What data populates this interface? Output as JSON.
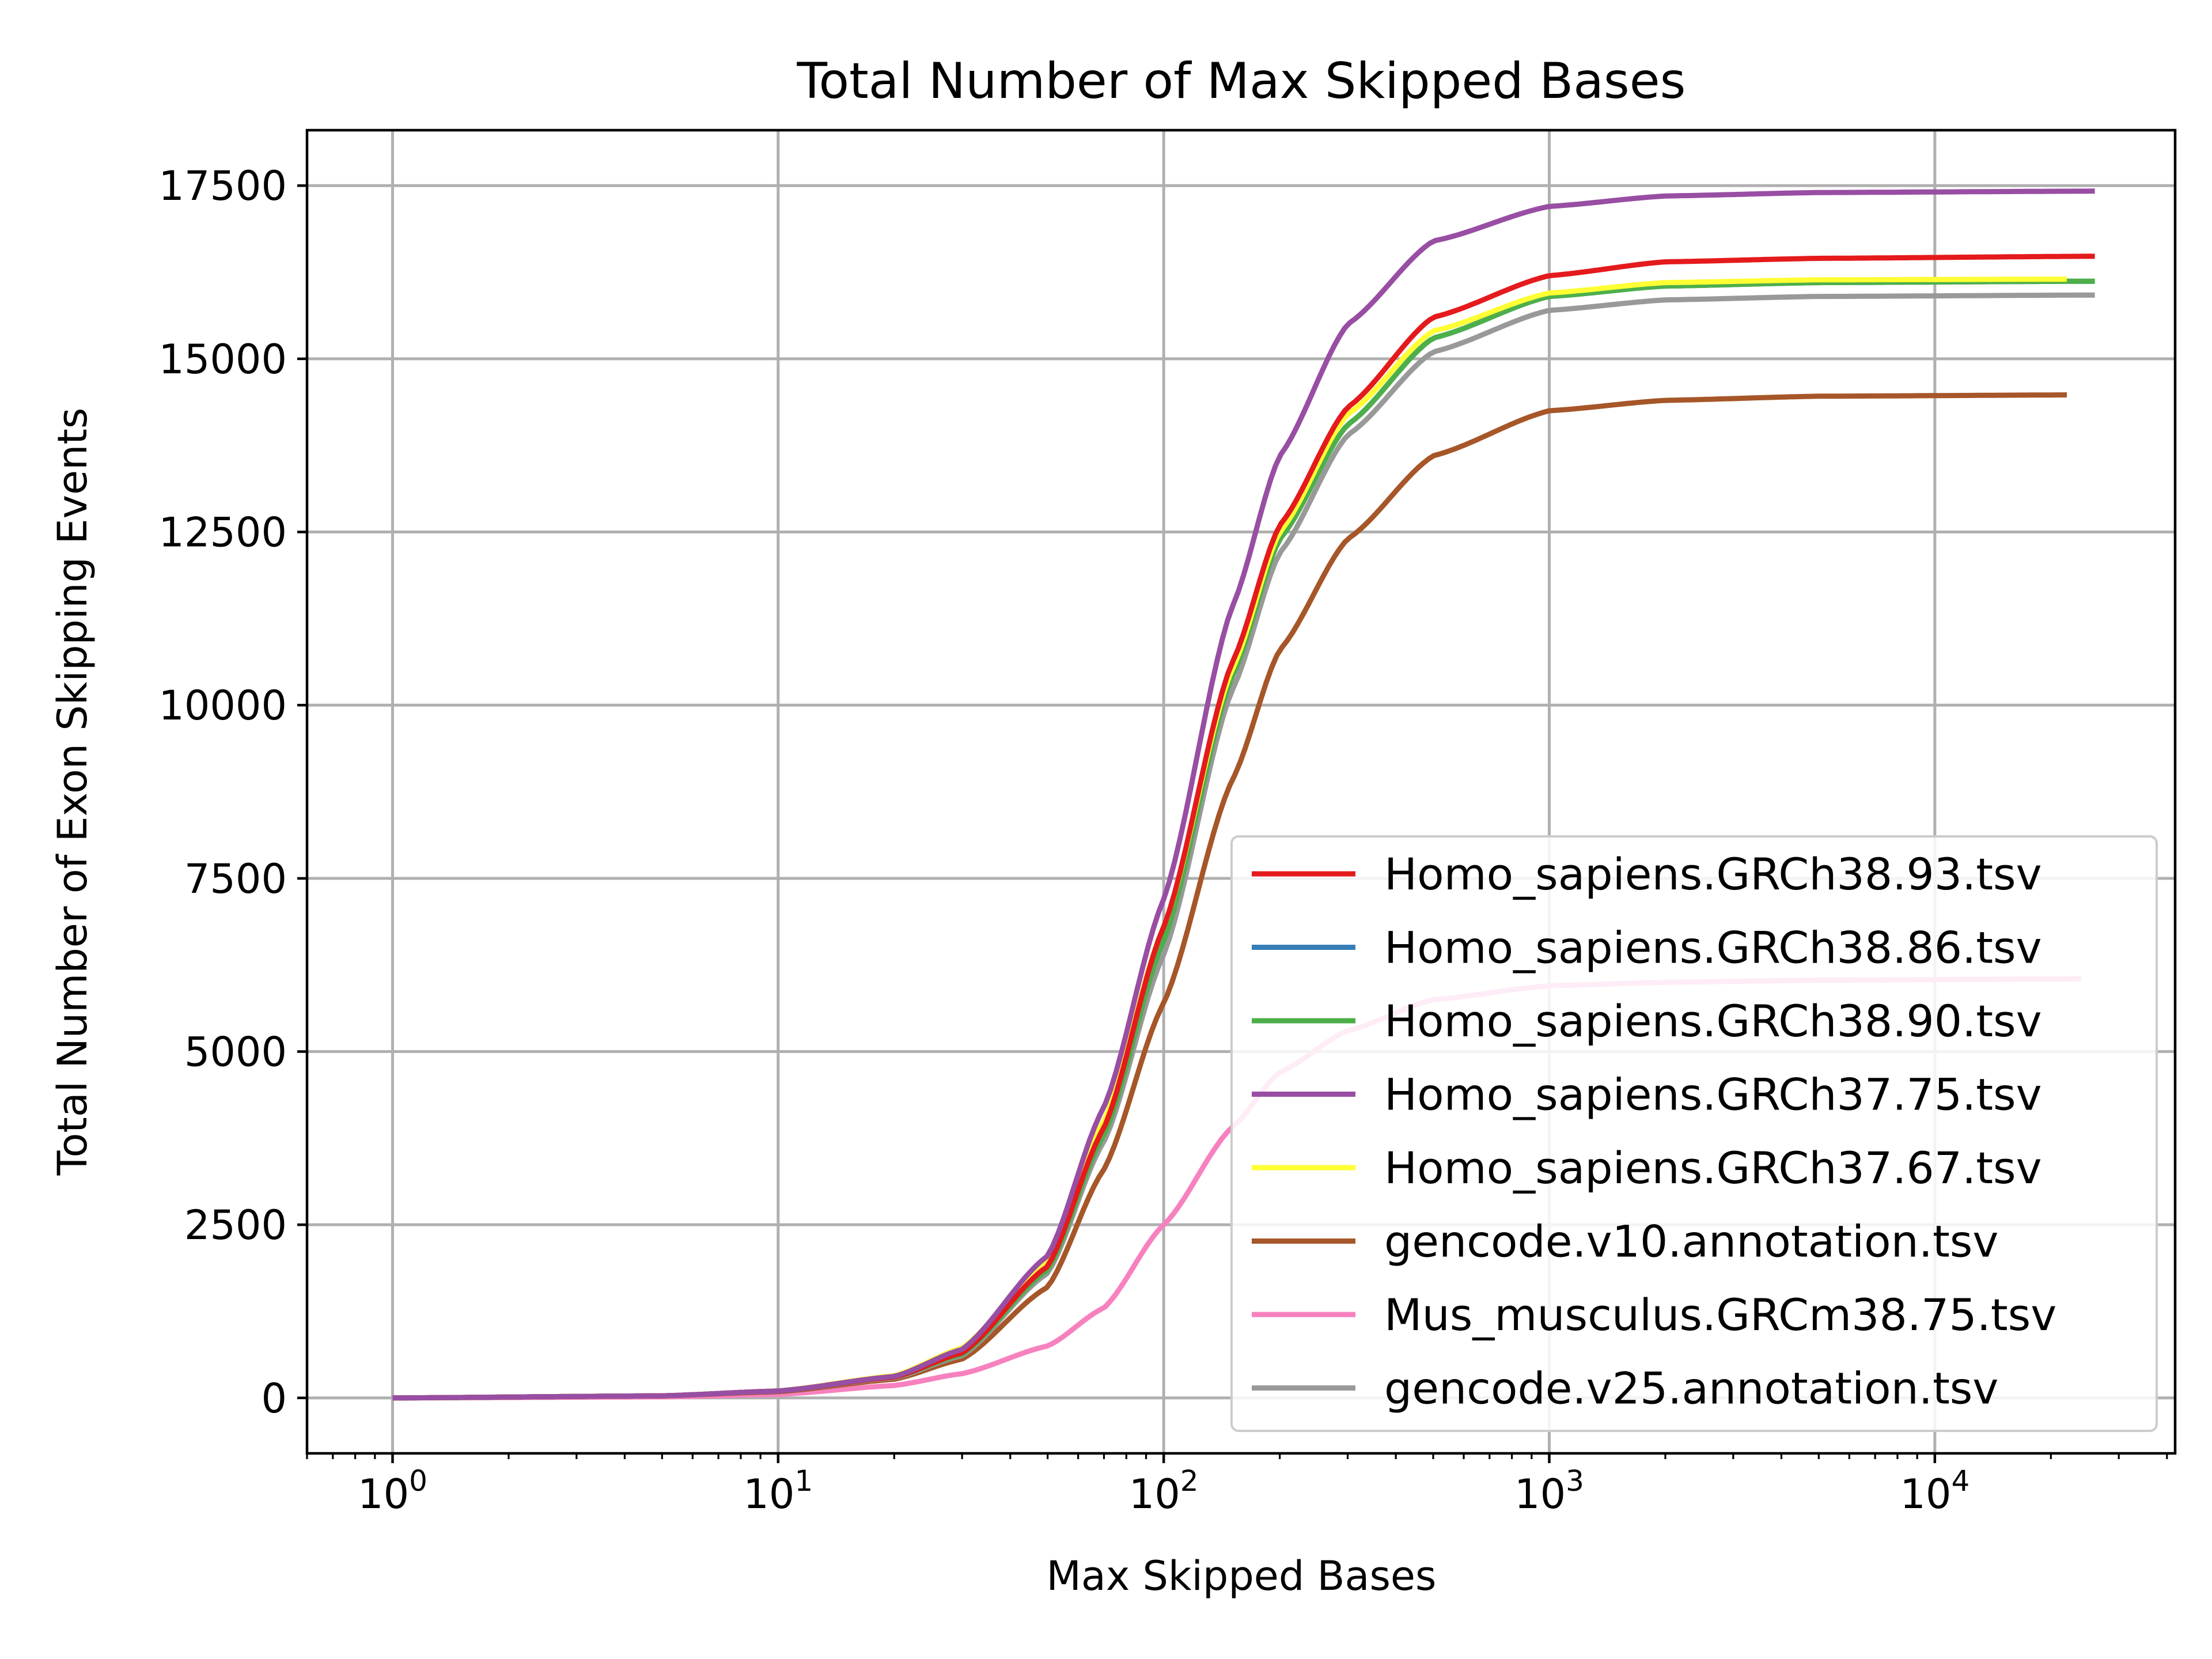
{
  "chart_data": {
    "type": "line",
    "title": "Total Number of Max Skipped Bases",
    "xlabel": "Max Skipped Bases",
    "ylabel": "Total Number of Exon Skipping Events",
    "xscale": "log",
    "xlim": [
      0.6,
      42000
    ],
    "ylim": [
      -800,
      18300
    ],
    "grid": true,
    "legend_position": "lower right",
    "xticks": [
      {
        "value": 1,
        "base": "10",
        "exp": "0"
      },
      {
        "value": 10,
        "base": "10",
        "exp": "1"
      },
      {
        "value": 100,
        "base": "10",
        "exp": "2"
      },
      {
        "value": 1000,
        "base": "10",
        "exp": "3"
      },
      {
        "value": 10000,
        "base": "10",
        "exp": "4"
      }
    ],
    "yticks": [
      {
        "value": 0,
        "label": "0"
      },
      {
        "value": 2500,
        "label": "2500"
      },
      {
        "value": 5000,
        "label": "5000"
      },
      {
        "value": 7500,
        "label": "7500"
      },
      {
        "value": 10000,
        "label": "10000"
      },
      {
        "value": 12500,
        "label": "12500"
      },
      {
        "value": 15000,
        "label": "15000"
      },
      {
        "value": 17500,
        "label": "17500"
      }
    ],
    "x": [
      1,
      5,
      10,
      20,
      30,
      50,
      70,
      100,
      150,
      200,
      300,
      500,
      1000,
      2000,
      5000,
      25000
    ],
    "series": [
      {
        "name": "Homo_sapiens.GRCh38.93.tsv",
        "color": "#e41a1c",
        "x_end": 26000,
        "values": [
          0,
          30,
          100,
          300,
          650,
          1900,
          3900,
          6800,
          10600,
          12600,
          14300,
          15600,
          16200,
          16400,
          16450,
          16480
        ]
      },
      {
        "name": "Homo_sapiens.GRCh38.86.tsv",
        "color": "#377eb8",
        "x_end": 26000,
        "values": [
          0,
          30,
          100,
          300,
          630,
          1850,
          3800,
          6600,
          10400,
          12400,
          14050,
          15300,
          15900,
          16050,
          16100,
          16120
        ]
      },
      {
        "name": "Homo_sapiens.GRCh38.90.tsv",
        "color": "#4daf4a",
        "x_end": 26000,
        "values": [
          0,
          30,
          100,
          300,
          630,
          1850,
          3800,
          6600,
          10400,
          12400,
          14050,
          15300,
          15900,
          16050,
          16100,
          16120
        ]
      },
      {
        "name": "Homo_sapiens.GRCh37.75.tsv",
        "color": "#984ea3",
        "x_end": 26000,
        "values": [
          0,
          30,
          100,
          310,
          700,
          2050,
          4200,
          7200,
          11400,
          13600,
          15500,
          16700,
          17200,
          17350,
          17400,
          17420
        ]
      },
      {
        "name": "Homo_sapiens.GRCh37.67.tsv",
        "color": "#ffff33",
        "x_end": 22000,
        "values": [
          0,
          30,
          100,
          320,
          720,
          2000,
          4000,
          6800,
          10500,
          12500,
          14200,
          15400,
          15950,
          16100,
          16140,
          16150
        ]
      },
      {
        "name": "gencode.v10.annotation.tsv",
        "color": "#a65628",
        "x_end": 22000,
        "values": [
          0,
          30,
          90,
          270,
          560,
          1600,
          3300,
          5700,
          8900,
          10800,
          12400,
          13600,
          14250,
          14400,
          14460,
          14480
        ]
      },
      {
        "name": "Mus_musculus.GRCm38.75.tsv",
        "color": "#f781bf",
        "x_end": 24000,
        "values": [
          0,
          15,
          50,
          180,
          350,
          750,
          1300,
          2500,
          3900,
          4700,
          5300,
          5750,
          5950,
          6000,
          6030,
          6050
        ]
      },
      {
        "name": "gencode.v25.annotation.tsv",
        "color": "#999999",
        "x_end": 26000,
        "values": [
          0,
          30,
          100,
          290,
          610,
          1800,
          3700,
          6400,
          10200,
          12200,
          13900,
          15100,
          15700,
          15850,
          15900,
          15920
        ]
      }
    ]
  }
}
